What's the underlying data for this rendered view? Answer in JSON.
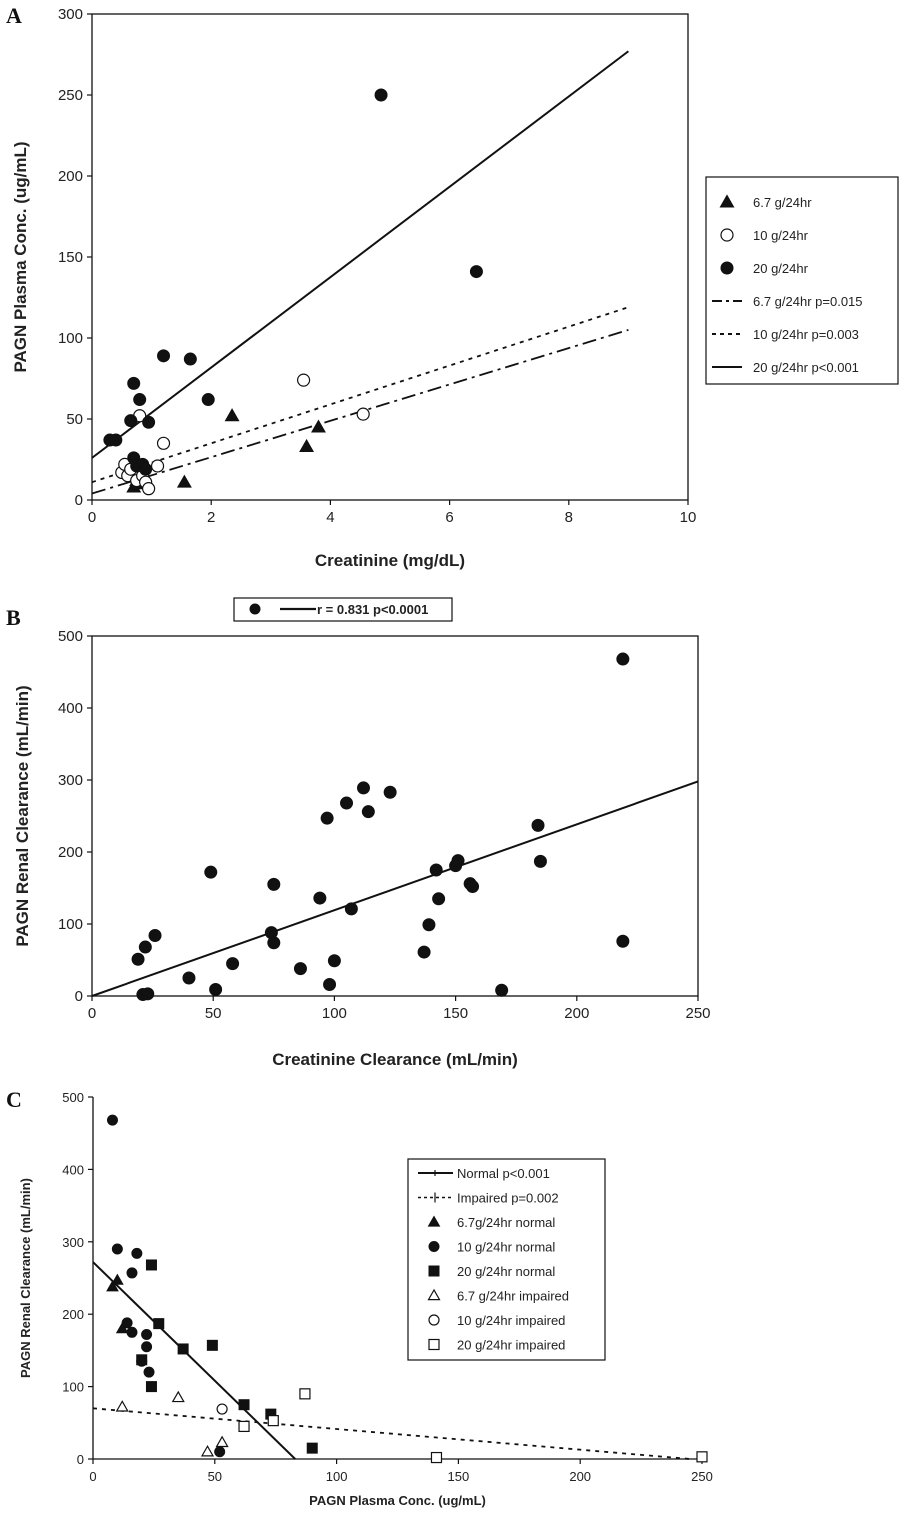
{
  "chart_data": [
    {
      "panel": "A",
      "type": "scatter",
      "xlabel": "Creatinine  (mg/dL)",
      "ylabel": "PAGN  Plasma Conc.  (ug/mL)",
      "xlim": [
        0,
        10
      ],
      "ylim": [
        0,
        300
      ],
      "xticks": [
        0,
        2,
        4,
        6,
        8,
        10
      ],
      "yticks": [
        0,
        50,
        100,
        150,
        200,
        250,
        300
      ],
      "grid": false,
      "legend_position": "right",
      "series": [
        {
          "name": "6.7 g/24hr",
          "marker": "triangle-filled",
          "points": [
            [
              0.7,
              8
            ],
            [
              0.75,
              12
            ],
            [
              0.8,
              10
            ],
            [
              0.9,
              13
            ],
            [
              1.55,
              11
            ],
            [
              2.35,
              52
            ],
            [
              3.6,
              33
            ],
            [
              3.8,
              45
            ]
          ]
        },
        {
          "name": "10 g/24hr",
          "marker": "circle-open",
          "points": [
            [
              0.5,
              17
            ],
            [
              0.55,
              22
            ],
            [
              0.6,
              15
            ],
            [
              0.65,
              19
            ],
            [
              0.75,
              12
            ],
            [
              0.8,
              52
            ],
            [
              0.85,
              15
            ],
            [
              0.9,
              11
            ],
            [
              0.95,
              7
            ],
            [
              1.1,
              21
            ],
            [
              1.2,
              35
            ],
            [
              3.55,
              74
            ],
            [
              4.55,
              53
            ]
          ]
        },
        {
          "name": "20 g/24hr",
          "marker": "circle-filled",
          "points": [
            [
              0.3,
              37
            ],
            [
              0.4,
              37
            ],
            [
              0.65,
              49
            ],
            [
              0.7,
              72
            ],
            [
              0.7,
              26
            ],
            [
              0.75,
              21
            ],
            [
              0.8,
              62
            ],
            [
              0.85,
              22
            ],
            [
              0.95,
              48
            ],
            [
              1.2,
              89
            ],
            [
              1.65,
              87
            ],
            [
              1.95,
              62
            ],
            [
              4.85,
              250
            ],
            [
              6.45,
              141
            ],
            [
              0.9,
              19
            ]
          ]
        }
      ],
      "fits": [
        {
          "name": "6.7 g/24hr p=0.015",
          "style": "dash-dot",
          "x": [
            0,
            9
          ],
          "y": [
            4,
            105
          ]
        },
        {
          "name": "10 g/24hr p=0.003",
          "style": "dotted",
          "x": [
            0,
            9
          ],
          "y": [
            11,
            119
          ]
        },
        {
          "name": "20 g/24hr p<0.001",
          "style": "solid",
          "x": [
            0,
            9
          ],
          "y": [
            26,
            277
          ]
        }
      ]
    },
    {
      "panel": "B",
      "type": "scatter",
      "xlabel": "Creatinine Clearance (mL/min)",
      "ylabel": "PAGN Renal Clearance (mL/min)",
      "xlim": [
        0,
        250
      ],
      "ylim": [
        0,
        500
      ],
      "xticks": [
        0,
        50,
        100,
        150,
        200,
        250
      ],
      "yticks": [
        0,
        100,
        200,
        300,
        400,
        500
      ],
      "grid": false,
      "legend_position": "top",
      "legend_label": "r = 0.831 p<0.0001",
      "series": [
        {
          "name": "",
          "marker": "circle-filled",
          "points": [
            [
              19,
              51
            ],
            [
              21,
              2
            ],
            [
              22,
              68
            ],
            [
              23,
              3
            ],
            [
              26,
              84
            ],
            [
              40,
              25
            ],
            [
              49,
              172
            ],
            [
              51,
              9
            ],
            [
              58,
              45
            ],
            [
              74,
              88
            ],
            [
              75,
              74
            ],
            [
              75,
              155
            ],
            [
              86,
              38
            ],
            [
              94,
              136
            ],
            [
              97,
              247
            ],
            [
              98,
              16
            ],
            [
              100,
              49
            ],
            [
              105,
              268
            ],
            [
              107,
              121
            ],
            [
              112,
              289
            ],
            [
              114,
              256
            ],
            [
              123,
              283
            ],
            [
              137,
              61
            ],
            [
              139,
              99
            ],
            [
              142,
              175
            ],
            [
              143,
              135
            ],
            [
              150,
              181
            ],
            [
              151,
              188
            ],
            [
              156,
              156
            ],
            [
              157,
              152
            ],
            [
              169,
              8
            ],
            [
              184,
              237
            ],
            [
              185,
              187
            ],
            [
              219,
              468
            ],
            [
              219,
              76
            ]
          ]
        }
      ],
      "fits": [
        {
          "name": "r = 0.831 p<0.0001",
          "style": "solid",
          "x": [
            0,
            250
          ],
          "y": [
            0,
            298
          ]
        }
      ]
    },
    {
      "panel": "C",
      "type": "scatter",
      "xlabel": "PAGN Plasma Conc. (ug/mL)",
      "ylabel": "PAGN Renal Clearance (mL/min)",
      "xlim": [
        0,
        250
      ],
      "ylim": [
        0,
        500
      ],
      "xticks": [
        0,
        50,
        100,
        150,
        200,
        250
      ],
      "yticks": [
        0,
        100,
        200,
        300,
        400,
        500
      ],
      "grid": false,
      "legend_position": "right",
      "fits": [
        {
          "name": "Normal p<0.001",
          "style": "solid",
          "x": [
            0,
            83
          ],
          "y": [
            272,
            0
          ]
        },
        {
          "name": "Impaired p=0.002",
          "style": "dotted",
          "x": [
            0,
            245
          ],
          "y": [
            70,
            0
          ]
        }
      ],
      "series": [
        {
          "name": "6.7g/24hr normal",
          "marker": "triangle-filled",
          "points": [
            [
              8,
              238
            ],
            [
              10,
              247
            ],
            [
              12,
              180
            ]
          ]
        },
        {
          "name": "10 g/24hr normal",
          "marker": "circle-filled",
          "points": [
            [
              8,
              468
            ],
            [
              10,
              290
            ],
            [
              14,
              188
            ],
            [
              16,
              257
            ],
            [
              16,
              175
            ],
            [
              18,
              284
            ],
            [
              20,
              135
            ],
            [
              22,
              172
            ],
            [
              22,
              155
            ],
            [
              23,
              120
            ],
            [
              52,
              10
            ]
          ]
        },
        {
          "name": "20 g/24hr normal",
          "marker": "square-filled",
          "points": [
            [
              20,
              137
            ],
            [
              24,
              100
            ],
            [
              24,
              268
            ],
            [
              27,
              187
            ],
            [
              37,
              152
            ],
            [
              49,
              157
            ],
            [
              62,
              75
            ],
            [
              73,
              62
            ],
            [
              90,
              15
            ]
          ]
        },
        {
          "name": "6.7 g/24hr impaired",
          "marker": "triangle-open",
          "points": [
            [
              12,
              72
            ],
            [
              35,
              85
            ],
            [
              47,
              10
            ],
            [
              53,
              23
            ]
          ]
        },
        {
          "name": "10 g/24hr impaired",
          "marker": "circle-open",
          "points": [
            [
              53,
              69
            ]
          ]
        },
        {
          "name": "20 g/24hr impaired",
          "marker": "square-open",
          "points": [
            [
              62,
              45
            ],
            [
              74,
              53
            ],
            [
              87,
              90
            ],
            [
              141,
              2
            ],
            [
              250,
              3
            ]
          ]
        }
      ]
    }
  ]
}
